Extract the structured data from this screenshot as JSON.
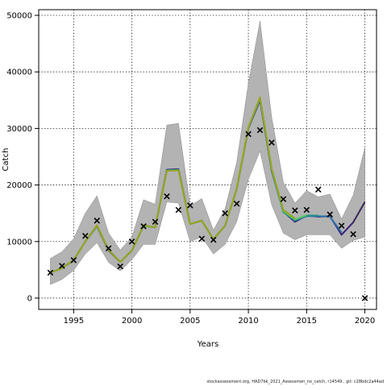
{
  "chart_data": {
    "type": "line",
    "title": "",
    "xlabel": "Years",
    "ylabel": "Catch",
    "xlim": [
      1992,
      2021
    ],
    "ylim": [
      -2000,
      51000
    ],
    "xticks": [
      1995,
      2000,
      2005,
      2010,
      2015,
      2020
    ],
    "yticks": [
      0,
      10000,
      20000,
      30000,
      40000,
      50000
    ],
    "grid": true,
    "x": [
      1993,
      1994,
      1995,
      1996,
      1997,
      1998,
      1999,
      2000,
      2001,
      2002,
      2003,
      2004,
      2005,
      2006,
      2007,
      2008,
      2009,
      2010,
      2011,
      2012,
      2013,
      2014,
      2015,
      2016,
      2017,
      2018,
      2019,
      2020
    ],
    "band": {
      "upper": [
        7000,
        8200,
        10500,
        15000,
        18100,
        11500,
        8500,
        10800,
        17400,
        16600,
        30600,
        30900,
        16300,
        17600,
        12000,
        15800,
        24000,
        38000,
        49000,
        32000,
        20500,
        16800,
        19000,
        17900,
        18400,
        14000,
        18200,
        26600
      ],
      "lower": [
        2400,
        3300,
        4900,
        7800,
        9800,
        6300,
        4800,
        6800,
        9500,
        9500,
        17000,
        16800,
        10000,
        10800,
        7800,
        9500,
        13500,
        21000,
        26000,
        16500,
        11500,
        10300,
        11200,
        11200,
        11200,
        8800,
        10200,
        10800
      ]
    },
    "series": [
      {
        "color": "#3b1f7a",
        "values": [
          4500,
          5300,
          6700,
          10000,
          12700,
          8400,
          6400,
          8400,
          12800,
          12500,
          22700,
          22800,
          13100,
          13700,
          10400,
          12800,
          19300,
          30000,
          35000,
          22500,
          15300,
          13500,
          14600,
          14400,
          14500,
          11200,
          13400,
          17000
        ]
      },
      {
        "color": "#2b6ea8",
        "values": [
          4500,
          5300,
          6700,
          10000,
          12800,
          8500,
          6400,
          8400,
          12800,
          12500,
          22600,
          22700,
          13100,
          13700,
          10400,
          12800,
          19300,
          30100,
          35200,
          22600,
          15300,
          13700,
          14500,
          14500,
          14400,
          11600,
          null,
          null
        ]
      },
      {
        "color": "#21908c",
        "values": [
          4500,
          5300,
          6700,
          10000,
          12800,
          8500,
          6400,
          8400,
          12800,
          12500,
          22600,
          22700,
          13100,
          13700,
          10400,
          12800,
          19300,
          30100,
          35300,
          22700,
          15200,
          13800,
          14600,
          14600,
          null,
          null,
          null,
          null
        ]
      },
      {
        "color": "#5cc863",
        "values": [
          4500,
          5300,
          6700,
          10000,
          12800,
          8500,
          6400,
          8400,
          12800,
          12500,
          22500,
          22600,
          13100,
          13700,
          10400,
          12800,
          19300,
          30200,
          35400,
          22800,
          15400,
          13900,
          14700,
          null,
          null,
          null,
          null,
          null
        ]
      },
      {
        "color": "#9aa31c",
        "values": [
          4500,
          5300,
          6700,
          10000,
          12900,
          8500,
          6400,
          8400,
          12900,
          12500,
          22500,
          22600,
          13100,
          13700,
          10400,
          12800,
          19400,
          30200,
          35500,
          22900,
          15600,
          14100,
          null,
          null,
          null,
          null,
          null,
          null
        ]
      }
    ],
    "dashed_projection": {
      "x": [
        2019,
        2020
      ],
      "values": [
        13400,
        17000
      ]
    },
    "observations": {
      "x": [
        1993,
        1994,
        1995,
        1996,
        1997,
        1998,
        1999,
        2000,
        2001,
        2002,
        2003,
        2004,
        2005,
        2006,
        2007,
        2008,
        2009,
        2010,
        2011,
        2012,
        2013,
        2014,
        2015,
        2016,
        2017,
        2018,
        2019,
        2020
      ],
      "values": [
        4500,
        5700,
        6700,
        11000,
        13700,
        8800,
        5600,
        10000,
        12700,
        13500,
        18000,
        15600,
        16400,
        10500,
        10300,
        15000,
        16700,
        29000,
        29700,
        27500,
        17500,
        15500,
        15600,
        19200,
        14800,
        12800,
        11300,
        0
      ]
    }
  },
  "footer_text": "stockassessment.org, HAD7bk_2021_Assessmen_no_catch, r14549 , git: c28bdc2a44ad"
}
